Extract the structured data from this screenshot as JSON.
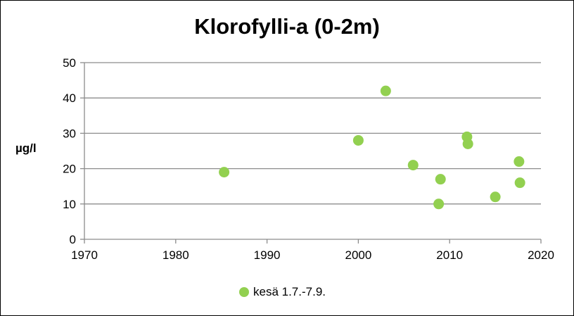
{
  "chart_data": {
    "type": "scatter",
    "title": "Klorofylli-a (0-2m)",
    "xlabel": "",
    "ylabel": "µg/l",
    "xlim": [
      1970,
      2020
    ],
    "ylim": [
      0,
      50
    ],
    "x_ticks": [
      1970,
      1980,
      1990,
      2000,
      2010,
      2020
    ],
    "y_ticks": [
      0,
      10,
      20,
      30,
      40,
      50
    ],
    "grid": true,
    "legend_position": "bottom",
    "series": [
      {
        "name": "kesä 1.7.-7.9.",
        "color": "#92d050",
        "points": [
          {
            "x": 1985.3,
            "y": 19
          },
          {
            "x": 2000.0,
            "y": 28
          },
          {
            "x": 2003.0,
            "y": 42
          },
          {
            "x": 2006.0,
            "y": 21
          },
          {
            "x": 2008.8,
            "y": 10
          },
          {
            "x": 2009.0,
            "y": 17
          },
          {
            "x": 2011.9,
            "y": 29
          },
          {
            "x": 2012.0,
            "y": 27
          },
          {
            "x": 2015.0,
            "y": 12
          },
          {
            "x": 2017.6,
            "y": 22
          },
          {
            "x": 2017.7,
            "y": 16
          }
        ]
      }
    ]
  }
}
